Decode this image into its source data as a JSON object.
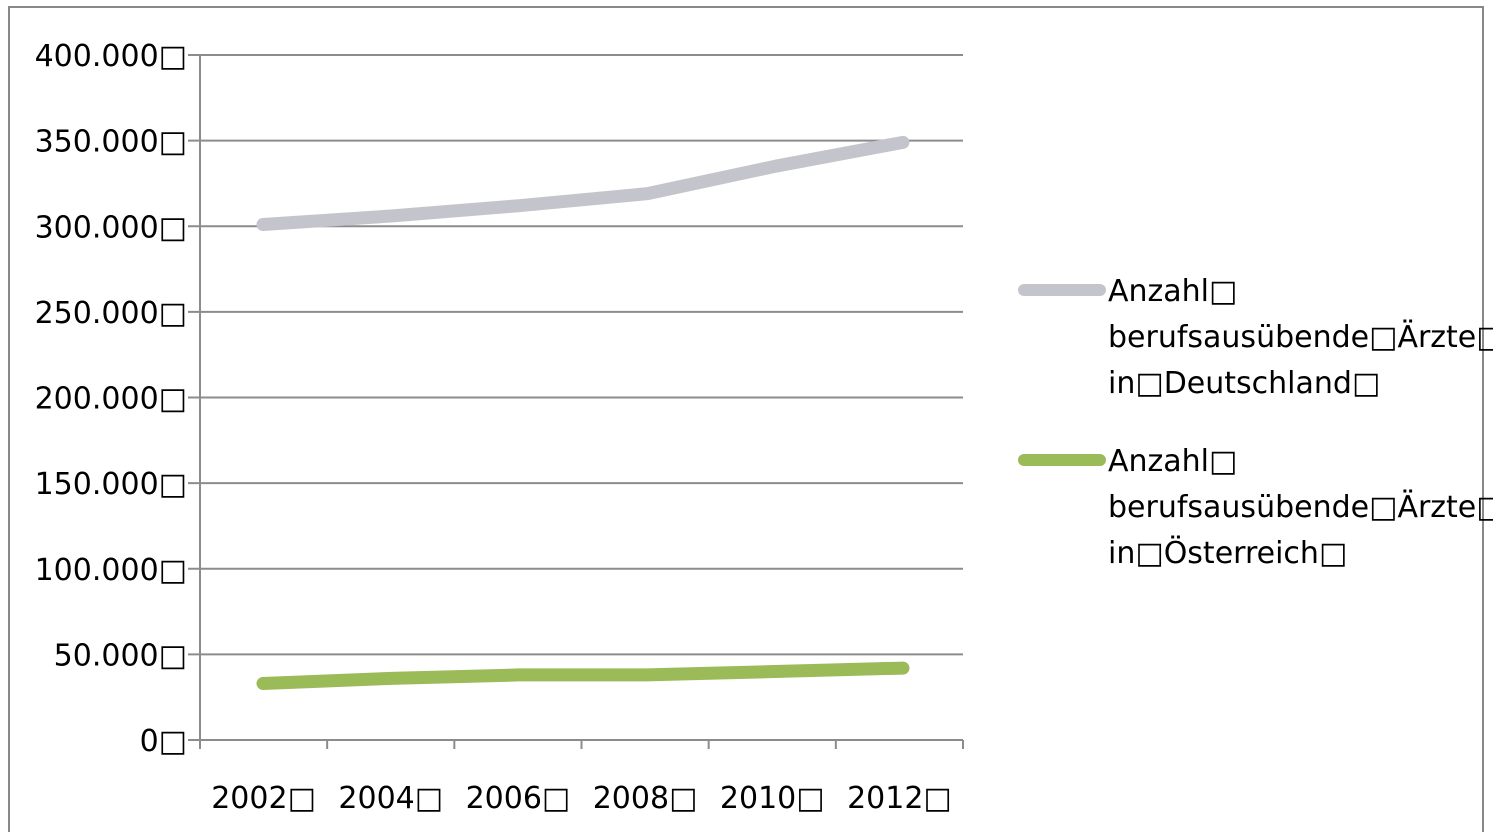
{
  "chart_data": {
    "type": "line",
    "x": [
      "2002",
      "2004",
      "2006",
      "2008",
      "2010",
      "2012"
    ],
    "y_ticks": [
      "0",
      "50.000",
      "100.000",
      "150.000",
      "200.000",
      "250.000",
      "300.000",
      "350.000",
      "400.000"
    ],
    "ylim": [
      0,
      400000
    ],
    "grid": true,
    "legend_position": "right",
    "series": [
      {
        "name_lines": [
          "Anzahl",
          "berufsausübende Ärzte",
          "in Deutschland"
        ],
        "color": "#c4c4cc",
        "values": [
          301000,
          306000,
          312000,
          319000,
          335000,
          349000
        ]
      },
      {
        "name_lines": [
          "Anzahl",
          "berufsausübende Ärzte",
          "in Österreich"
        ],
        "color": "#9bbb59",
        "values": [
          33000,
          36000,
          38000,
          38000,
          40000,
          42000
        ]
      }
    ],
    "glyph_marker": "□"
  }
}
